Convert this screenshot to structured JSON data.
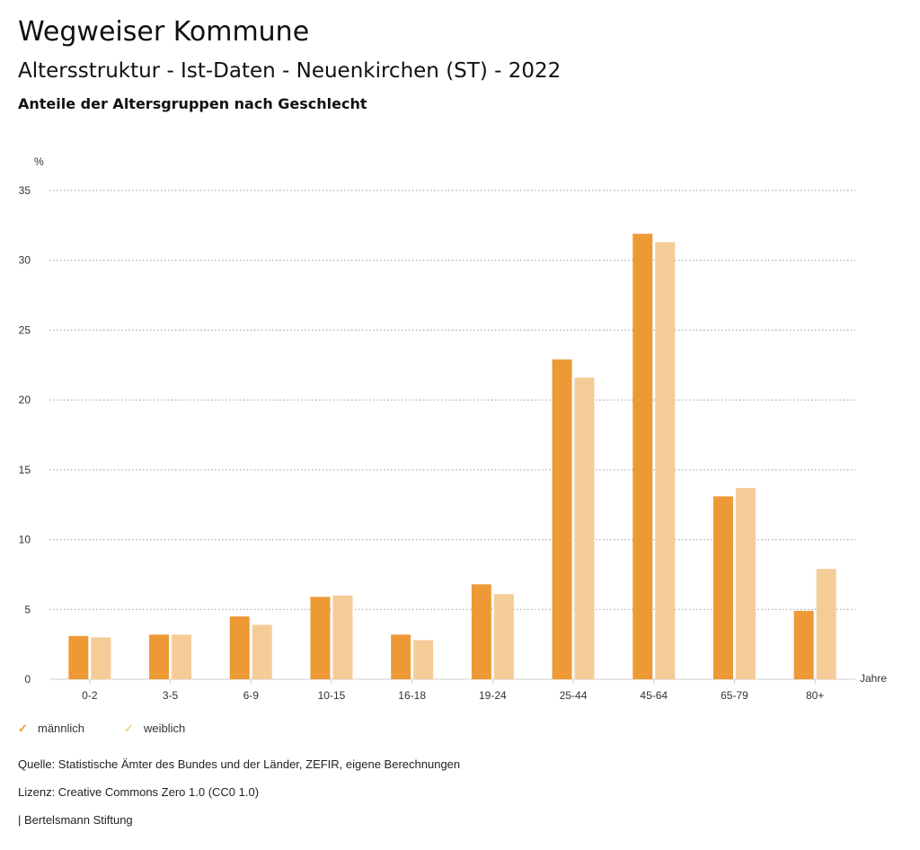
{
  "header": {
    "title": "Wegweiser Kommune",
    "subtitle": "Altersstruktur - Ist-Daten - Neuenkirchen (ST) - 2022",
    "subsubtitle": "Anteile der Altersgruppen nach Geschlecht"
  },
  "chart_data": {
    "type": "bar",
    "title": "Anteile der Altersgruppen nach Geschlecht",
    "ylabel": "%",
    "xlabel": "Jahre",
    "ylim": [
      0,
      35
    ],
    "yticks": [
      0,
      5,
      10,
      15,
      20,
      25,
      30,
      35
    ],
    "grid": true,
    "categories": [
      "0-2",
      "3-5",
      "6-9",
      "10-15",
      "16-18",
      "19-24",
      "25-44",
      "45-64",
      "65-79",
      "80+"
    ],
    "series": [
      {
        "name": "männlich",
        "color": "#ED9A36",
        "values": [
          3.1,
          3.2,
          4.5,
          5.9,
          3.2,
          6.8,
          22.9,
          31.9,
          13.1,
          4.9
        ]
      },
      {
        "name": "weiblich",
        "color": "#F5CC97",
        "values": [
          3.0,
          3.2,
          3.9,
          6.0,
          2.8,
          6.1,
          21.6,
          31.3,
          13.7,
          7.9
        ]
      }
    ],
    "legend_position": "bottom-left"
  },
  "footer": {
    "source": "Quelle: Statistische Ämter des Bundes und der Länder, ZEFIR, eigene Berechnungen",
    "license": "Lizenz: Creative Commons Zero 1.0 (CC0 1.0)",
    "brand": "| Bertelsmann Stiftung"
  }
}
